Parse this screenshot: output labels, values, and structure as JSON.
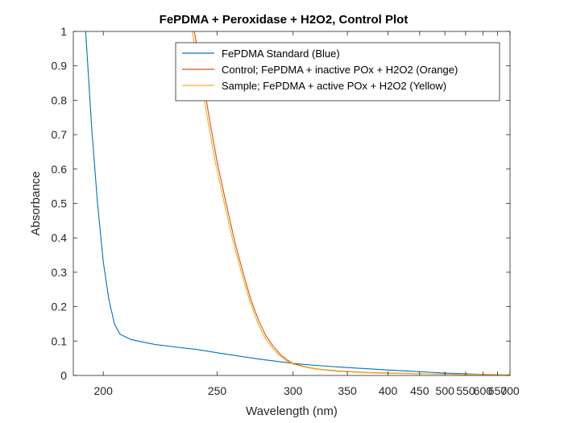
{
  "chart_data": {
    "type": "line",
    "title": "FePDMA + Peroxidase + H2O2, Control Plot",
    "xlabel": "Wavelength (nm)",
    "ylabel": "Absorbance",
    "x_scale": "reciprocal",
    "xlim": [
      190,
      700
    ],
    "ylim": [
      0,
      1
    ],
    "xticks": [
      200,
      250,
      300,
      350,
      400,
      450,
      500,
      550,
      600,
      650,
      700
    ],
    "yticks": [
      0,
      0.1,
      0.2,
      0.3,
      0.4,
      0.5,
      0.6,
      0.7,
      0.8,
      0.9,
      1
    ],
    "ytick_labels": [
      "0",
      "0.1",
      "0.2",
      "0.3",
      "0.4",
      "0.5",
      "0.6",
      "0.7",
      "0.8",
      "0.9",
      "1"
    ],
    "grid": false,
    "legend_position": "top-right",
    "series": [
      {
        "name": "FePDMA Standard (Blue)",
        "color": "#0072BD",
        "points": [
          [
            194,
            1.0
          ],
          [
            196,
            0.72
          ],
          [
            198,
            0.5
          ],
          [
            200,
            0.33
          ],
          [
            202,
            0.22
          ],
          [
            204,
            0.15
          ],
          [
            206,
            0.12
          ],
          [
            210,
            0.105
          ],
          [
            215,
            0.097
          ],
          [
            220,
            0.09
          ],
          [
            230,
            0.082
          ],
          [
            240,
            0.075
          ],
          [
            250,
            0.066
          ],
          [
            260,
            0.058
          ],
          [
            270,
            0.051
          ],
          [
            280,
            0.045
          ],
          [
            290,
            0.04
          ],
          [
            300,
            0.035
          ],
          [
            320,
            0.029
          ],
          [
            350,
            0.023
          ],
          [
            400,
            0.016
          ],
          [
            450,
            0.011
          ],
          [
            500,
            0.007
          ],
          [
            550,
            0.005
          ],
          [
            600,
            0.003
          ],
          [
            650,
            0.002
          ],
          [
            700,
            0.002
          ]
        ]
      },
      {
        "name": "Control; FePDMA + inactive POx + H2O2 (Orange)",
        "color": "#D95319",
        "points": [
          [
            238,
            1.0
          ],
          [
            240,
            0.94
          ],
          [
            243,
            0.84
          ],
          [
            246,
            0.74
          ],
          [
            250,
            0.62
          ],
          [
            255,
            0.5
          ],
          [
            260,
            0.39
          ],
          [
            265,
            0.3
          ],
          [
            270,
            0.22
          ],
          [
            275,
            0.16
          ],
          [
            280,
            0.115
          ],
          [
            285,
            0.085
          ],
          [
            290,
            0.062
          ],
          [
            295,
            0.046
          ],
          [
            300,
            0.035
          ],
          [
            310,
            0.025
          ],
          [
            320,
            0.019
          ],
          [
            340,
            0.013
          ],
          [
            370,
            0.009
          ],
          [
            400,
            0.007
          ],
          [
            450,
            0.005
          ],
          [
            500,
            0.004
          ],
          [
            550,
            0.003
          ],
          [
            600,
            0.003
          ],
          [
            700,
            0.002
          ]
        ]
      },
      {
        "name": "Sample; FePDMA + active POx + H2O2 (Yellow)",
        "color": "#EDB120",
        "points": [
          [
            237,
            1.0
          ],
          [
            239,
            0.94
          ],
          [
            242,
            0.84
          ],
          [
            245,
            0.74
          ],
          [
            249,
            0.62
          ],
          [
            254,
            0.5
          ],
          [
            259,
            0.39
          ],
          [
            264,
            0.3
          ],
          [
            269,
            0.22
          ],
          [
            274,
            0.158
          ],
          [
            279,
            0.112
          ],
          [
            284,
            0.082
          ],
          [
            289,
            0.06
          ],
          [
            294,
            0.044
          ],
          [
            300,
            0.033
          ],
          [
            310,
            0.024
          ],
          [
            320,
            0.018
          ],
          [
            340,
            0.012
          ],
          [
            370,
            0.008
          ],
          [
            400,
            0.006
          ],
          [
            450,
            0.005
          ],
          [
            500,
            0.004
          ],
          [
            550,
            0.003
          ],
          [
            600,
            0.003
          ],
          [
            700,
            0.002
          ]
        ]
      }
    ]
  }
}
